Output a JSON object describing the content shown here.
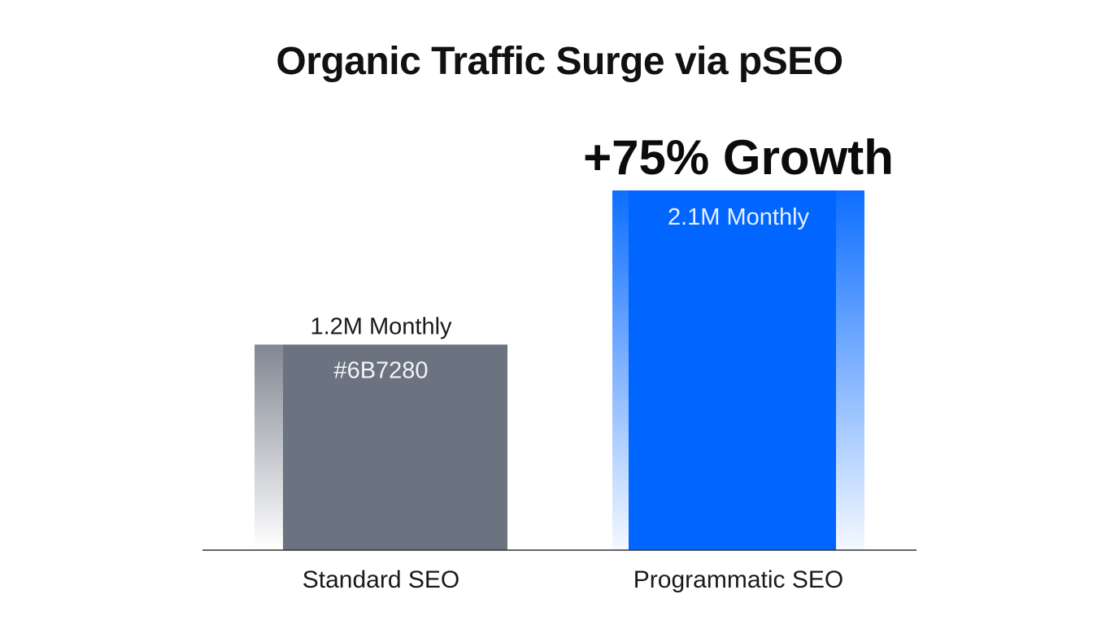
{
  "chart_data": {
    "type": "bar",
    "title": "Organic Traffic Surge via pSEO",
    "xlabel": "",
    "ylabel": "",
    "categories": [
      "Standard SEO",
      "Programmatic SEO"
    ],
    "values": [
      1.2,
      2.1
    ],
    "value_labels": [
      "1.2M Monthly",
      "2.1M Monthly"
    ],
    "inner_labels": [
      "#6B7280",
      ""
    ],
    "colors": [
      "#6B7280",
      "#0066FF"
    ],
    "annotation": "+75% Growth",
    "ylim": [
      0,
      2.1
    ],
    "grid": false,
    "legend": "none"
  }
}
